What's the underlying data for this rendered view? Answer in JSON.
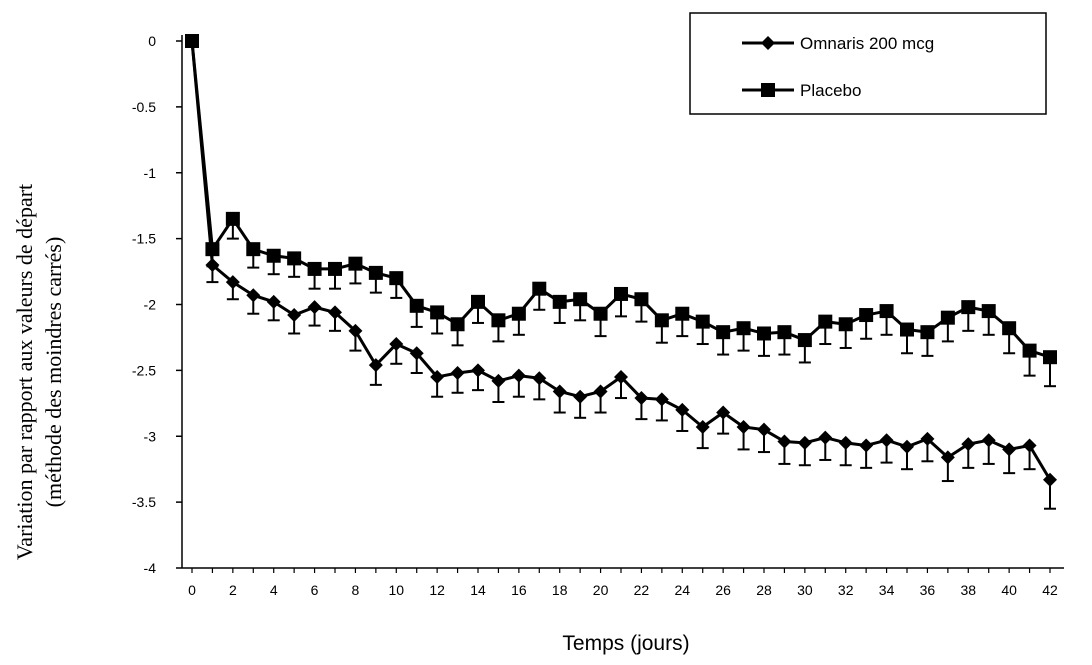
{
  "chart_data": {
    "type": "line",
    "xlabel": "Temps (jours)",
    "ylabel_lines": [
      "Variation par rapport aux valeurs de départ",
      "(méthode des moindres carrés)"
    ],
    "xlim": [
      0,
      42
    ],
    "ylim": [
      -4,
      0
    ],
    "x_ticks": [
      0,
      2,
      4,
      6,
      8,
      10,
      12,
      14,
      16,
      18,
      20,
      22,
      24,
      26,
      28,
      30,
      32,
      34,
      36,
      38,
      40,
      42
    ],
    "y_ticks": [
      0,
      -0.5,
      -1,
      -1.5,
      -2,
      -2.5,
      -3,
      -3.5,
      -4
    ],
    "grid": false,
    "legend_position": "top-right",
    "series": [
      {
        "name": "Omnaris 200 mcg",
        "marker": "diamond",
        "color": "#000000",
        "x": [
          0,
          1,
          2,
          3,
          4,
          5,
          6,
          7,
          8,
          9,
          10,
          11,
          12,
          13,
          14,
          15,
          16,
          17,
          18,
          19,
          20,
          21,
          22,
          23,
          24,
          25,
          26,
          27,
          28,
          29,
          30,
          31,
          32,
          33,
          34,
          35,
          36,
          37,
          38,
          39,
          40,
          41,
          42
        ],
        "values": [
          0,
          -1.7,
          -1.83,
          -1.93,
          -1.98,
          -2.08,
          -2.02,
          -2.06,
          -2.2,
          -2.46,
          -2.3,
          -2.37,
          -2.55,
          -2.52,
          -2.5,
          -2.58,
          -2.54,
          -2.56,
          -2.66,
          -2.7,
          -2.66,
          -2.55,
          -2.71,
          -2.72,
          -2.8,
          -2.93,
          -2.82,
          -2.93,
          -2.95,
          -3.04,
          -3.05,
          -3.01,
          -3.05,
          -3.07,
          -3.03,
          -3.08,
          -3.02,
          -3.16,
          -3.06,
          -3.03,
          -3.1,
          -3.07,
          -3.33
        ],
        "error": [
          0,
          0.13,
          0.13,
          0.14,
          0.14,
          0.14,
          0.14,
          0.14,
          0.15,
          0.15,
          0.15,
          0.15,
          0.15,
          0.15,
          0.15,
          0.16,
          0.16,
          0.16,
          0.16,
          0.16,
          0.16,
          0.16,
          0.16,
          0.16,
          0.16,
          0.16,
          0.16,
          0.17,
          0.17,
          0.17,
          0.17,
          0.17,
          0.17,
          0.17,
          0.17,
          0.17,
          0.17,
          0.18,
          0.18,
          0.18,
          0.18,
          0.18,
          0.22
        ]
      },
      {
        "name": "Placebo",
        "marker": "square",
        "color": "#000000",
        "x": [
          0,
          1,
          2,
          3,
          4,
          5,
          6,
          7,
          8,
          9,
          10,
          11,
          12,
          13,
          14,
          15,
          16,
          17,
          18,
          19,
          20,
          21,
          22,
          23,
          24,
          25,
          26,
          27,
          28,
          29,
          30,
          31,
          32,
          33,
          34,
          35,
          36,
          37,
          38,
          39,
          40,
          41,
          42
        ],
        "values": [
          0,
          -1.58,
          -1.35,
          -1.58,
          -1.63,
          -1.65,
          -1.73,
          -1.73,
          -1.69,
          -1.76,
          -1.8,
          -2.01,
          -2.06,
          -2.15,
          -1.98,
          -2.12,
          -2.07,
          -1.88,
          -1.98,
          -1.96,
          -2.07,
          -1.92,
          -1.96,
          -2.12,
          -2.07,
          -2.13,
          -2.21,
          -2.18,
          -2.22,
          -2.21,
          -2.27,
          -2.13,
          -2.15,
          -2.08,
          -2.05,
          -2.19,
          -2.21,
          -2.1,
          -2.02,
          -2.05,
          -2.18,
          -2.35,
          -2.4
        ],
        "error": [
          0,
          0.13,
          0.15,
          0.14,
          0.14,
          0.14,
          0.15,
          0.15,
          0.15,
          0.15,
          0.15,
          0.16,
          0.16,
          0.16,
          0.16,
          0.16,
          0.16,
          0.16,
          0.16,
          0.16,
          0.17,
          0.17,
          0.17,
          0.17,
          0.17,
          0.17,
          0.17,
          0.17,
          0.17,
          0.17,
          0.17,
          0.17,
          0.18,
          0.18,
          0.18,
          0.18,
          0.18,
          0.18,
          0.18,
          0.18,
          0.19,
          0.19,
          0.22
        ]
      }
    ]
  }
}
